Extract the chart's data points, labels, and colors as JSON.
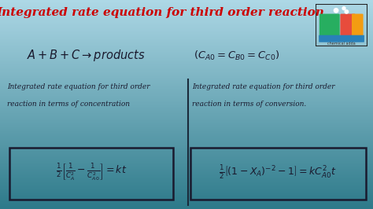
{
  "title": "Integrated rate equation for third order reaction",
  "title_color": "#cc0000",
  "bg_color_top": "#add8e6",
  "bg_color_bottom": "#2e7a8a",
  "reaction_eq": "$A + B + C \\rightarrow products$",
  "condition_eq": "$(C_{A0} = C_{B0} = C_{C0})$",
  "left_label_l1": "Integrated rate equation for third order",
  "left_label_l2": "reaction in terms of concentration",
  "right_label_l1": "Integrated rate equation for third order",
  "right_label_l2": "reaction in terms of conversion.",
  "left_formula": "$\\frac{1}{2}\\left[\\frac{1}{C_A^{2}} - \\frac{1}{C_{A0}^{2}}\\right] = kt$",
  "right_formula": "$\\frac{1}{2}\\left[(1-X_A)^{-2} - 1\\right] = kC_{A0}^{2}t$",
  "divider_color": "#1a2a3a",
  "box_facecolor": "none",
  "box_edge": "#1a1a2e",
  "text_color": "#1a1a2e",
  "figsize": [
    4.74,
    2.66
  ],
  "dpi": 100
}
